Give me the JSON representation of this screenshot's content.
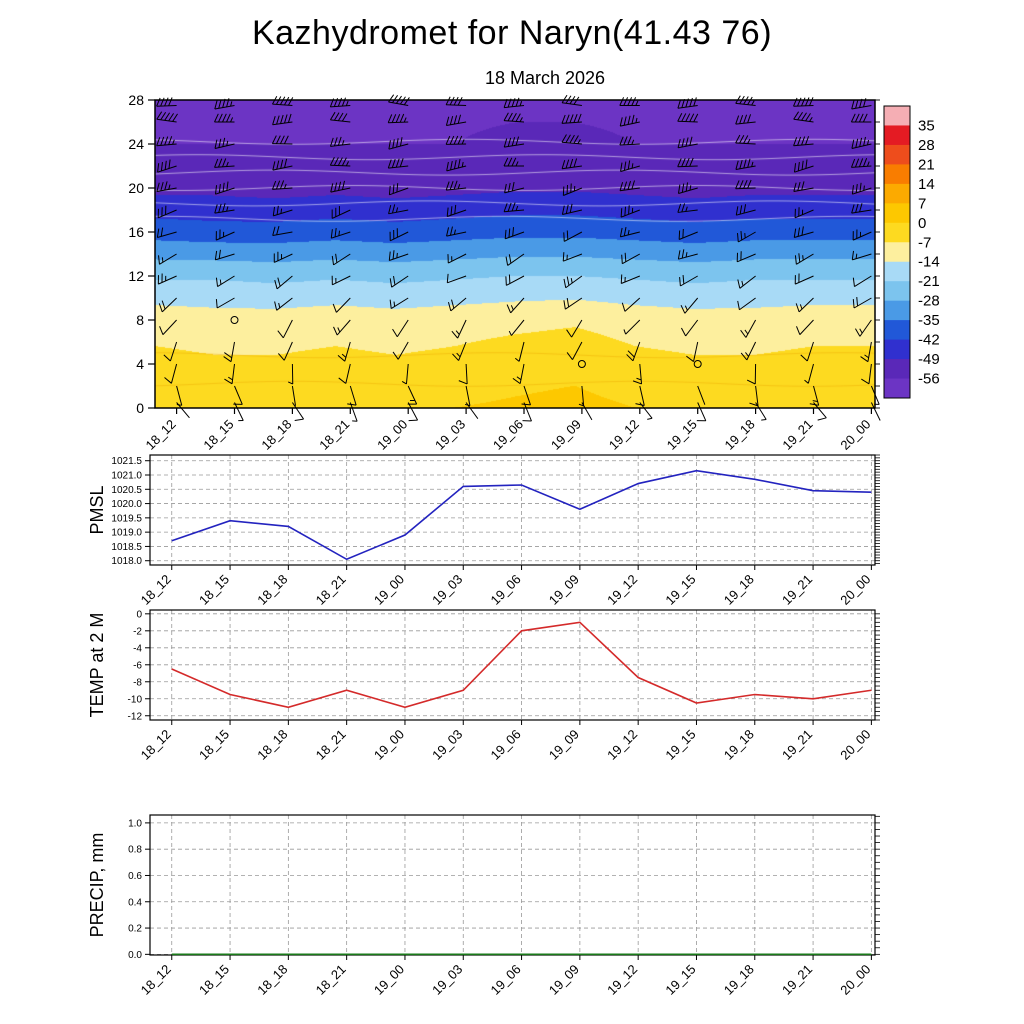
{
  "page": {
    "title": "Kazhydromet for Naryn(41.43 76)",
    "subtitle": "18 March 2026",
    "background": "#ffffff"
  },
  "time_labels": [
    "18_12",
    "18_15",
    "18_18",
    "18_21",
    "19_00",
    "19_03",
    "19_06",
    "19_09",
    "19_12",
    "19_15",
    "19_18",
    "19_21",
    "20_00"
  ],
  "chart_data": [
    {
      "id": "upper_air",
      "type": "heatmap",
      "title": "18 March 2026",
      "x_categories": [
        "18_12",
        "18_15",
        "18_18",
        "18_21",
        "19_00",
        "19_03",
        "19_06",
        "19_09",
        "19_12",
        "19_15",
        "19_18",
        "19_21",
        "20_00"
      ],
      "y_ticks": {
        "values": [
          28,
          24,
          20,
          16,
          12,
          8,
          4,
          0
        ],
        "labels": [
          "28",
          "24",
          "20",
          "16",
          "12",
          "8",
          "4",
          "0"
        ]
      },
      "heights": [
        0,
        4,
        8,
        12,
        16,
        20,
        24,
        28
      ],
      "temps_by_height": [
        [
          0,
          -1,
          -1,
          -1,
          -1,
          0,
          1,
          2,
          0,
          -1,
          -1,
          -1,
          0
        ],
        [
          -5,
          -6,
          -6,
          -5,
          -6,
          -5,
          -3,
          -2,
          -5,
          -6,
          -6,
          -5,
          -5
        ],
        [
          -10,
          -11,
          -11,
          -10,
          -11,
          -10,
          -9,
          -8,
          -10,
          -11,
          -11,
          -10,
          -10
        ],
        [
          -22,
          -22,
          -23,
          -22,
          -23,
          -22,
          -21,
          -21,
          -22,
          -23,
          -22,
          -22,
          -22
        ],
        [
          -38,
          -39,
          -39,
          -38,
          -39,
          -38,
          -37,
          -37,
          -38,
          -39,
          -38,
          -38,
          -38
        ],
        [
          -51,
          -51,
          -52,
          -51,
          -52,
          -51,
          -50,
          -50,
          -51,
          -52,
          -51,
          -51,
          -51
        ],
        [
          -56,
          -56,
          -56,
          -56,
          -56,
          -56,
          -55,
          -55,
          -56,
          -56,
          -56,
          -56,
          -56
        ],
        [
          -57,
          -57,
          -57,
          -57,
          -57,
          -57,
          -57,
          -57,
          -57,
          -57,
          -57,
          -57,
          -57
        ]
      ],
      "color_scale": {
        "boundaries": [
          35,
          28,
          21,
          14,
          7,
          0,
          -7,
          -14,
          -21,
          -28,
          -35,
          -42,
          -49,
          -56
        ],
        "colors": [
          "#f5aeb4",
          "#e41b23",
          "#ee4d1c",
          "#f97d00",
          "#fcaa00",
          "#fdc800",
          "#fdda20",
          "#fdef9e",
          "#a8daf6",
          "#7cc4ee",
          "#4a9ae6",
          "#2158d8",
          "#3030cf",
          "#5a28b8",
          "#6c34c4"
        ],
        "labels": [
          "35",
          "28",
          "21",
          "14",
          "7",
          "0",
          "-7",
          "-14",
          "-21",
          "-28",
          "-35",
          "-42",
          "-49",
          "-56"
        ]
      },
      "wind": {
        "heights": [
          0.5,
          2,
          4,
          6,
          8,
          10,
          12,
          14,
          16,
          18,
          20,
          22,
          24,
          26,
          27.5
        ],
        "dir_deg": [
          150,
          165,
          185,
          200,
          215,
          230,
          240,
          245,
          250,
          255,
          258,
          262,
          265,
          268,
          270
        ],
        "speed_kt": [
          6,
          8,
          10,
          12,
          10,
          15,
          18,
          20,
          25,
          30,
          35,
          40,
          40,
          45,
          45
        ],
        "calm_points": [
          [
            1,
            8
          ],
          [
            7,
            4
          ],
          [
            9,
            4
          ]
        ]
      }
    },
    {
      "id": "pmsl",
      "type": "line",
      "label": "PMSL",
      "color": "#2323bf",
      "y_ticks": {
        "values": [
          1021.5,
          1021.0,
          1020.5,
          1020.0,
          1019.5,
          1019.0,
          1018.5,
          1018.0
        ],
        "labels": [
          "1021.5",
          "1021.0",
          "1020.5",
          "1020.0",
          "1019.5",
          "1019.0",
          "1018.5",
          "1018.0"
        ]
      },
      "y_range": [
        1017.85,
        1021.7
      ],
      "y_minor_step": 0.1,
      "values": [
        1018.7,
        1019.4,
        1019.2,
        1018.05,
        1018.9,
        1020.6,
        1020.65,
        1019.8,
        1020.7,
        1021.15,
        1020.85,
        1020.45,
        1020.4
      ]
    },
    {
      "id": "temp2m",
      "type": "line",
      "label": "TEMP at 2 M",
      "color": "#d42a2a",
      "y_ticks": {
        "values": [
          0,
          -2,
          -4,
          -6,
          -8,
          -10,
          -12
        ],
        "labels": [
          "0",
          "-2",
          "-4",
          "-6",
          "-8",
          "-10",
          "-12"
        ]
      },
      "y_range": [
        -12.5,
        0.45
      ],
      "y_minor_step": 0.5,
      "values": [
        -6.5,
        -9.5,
        -11,
        -9,
        -11,
        -9,
        -2,
        -1,
        -7.5,
        -10.5,
        -9.5,
        -10,
        -9
      ]
    },
    {
      "id": "precip",
      "type": "line",
      "label": "PRECIP, mm",
      "color": "#1a7a1a",
      "y_ticks": {
        "values": [
          1.0,
          0.8,
          0.6,
          0.4,
          0.2,
          0.0
        ],
        "labels": [
          "1.0",
          "0.8",
          "0.6",
          "0.4",
          "0.2",
          "0.0"
        ]
      },
      "y_range": [
        -0.005,
        1.06
      ],
      "y_minor_step": 0.05,
      "values": [
        0,
        0,
        0,
        0,
        0,
        0,
        0,
        0,
        0,
        0,
        0,
        0,
        0
      ]
    }
  ]
}
